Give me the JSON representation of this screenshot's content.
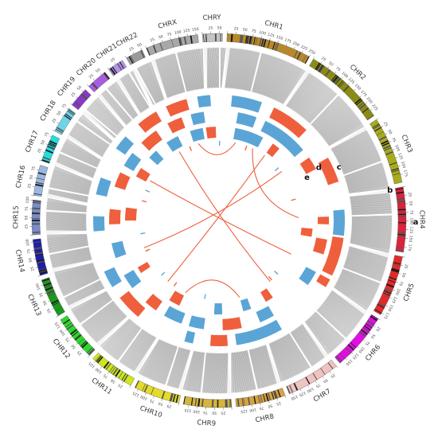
{
  "chromosomes": [
    {
      "label": "CHR1",
      "color": "#b8892a",
      "len": 250
    },
    {
      "label": "CHR2",
      "color": "#8b8a16",
      "len": 243
    },
    {
      "label": "CHR3",
      "color": "#a8ab1b",
      "len": 198
    },
    {
      "label": "CHR4",
      "color": "#d8243d",
      "len": 191
    },
    {
      "label": "CHR5",
      "color": "#e02b2b",
      "len": 181
    },
    {
      "label": "CHR6",
      "color": "#e00ee0",
      "len": 171
    },
    {
      "label": "CHR7",
      "color": "#f0c3c0",
      "len": 159
    },
    {
      "label": "CHR8",
      "color": "#d8a341",
      "len": 146
    },
    {
      "label": "CHR9",
      "color": "#d6b53a",
      "len": 141
    },
    {
      "label": "CHR10",
      "color": "#e5dc2a",
      "len": 136
    },
    {
      "label": "CHR11",
      "color": "#cfe61f",
      "len": 135
    },
    {
      "label": "CHR12",
      "color": "#2fd62f",
      "len": 134
    },
    {
      "label": "CHR13",
      "color": "#1b9a1b",
      "len": 115
    },
    {
      "label": "CHR14",
      "color": "#1e1ea8",
      "len": 107
    },
    {
      "label": "CHR15",
      "color": "#7a8cc8",
      "len": 102
    },
    {
      "label": "CHR16",
      "color": "#9bb8e2",
      "len": 90
    },
    {
      "label": "CHR17",
      "color": "#22dde0",
      "len": 81
    },
    {
      "label": "CHR18",
      "color": "#6fd4e8",
      "len": 78
    },
    {
      "label": "CHR19",
      "color": "#8a38c8",
      "len": 59
    },
    {
      "label": "CHR20",
      "color": "#a85ce0",
      "len": 63
    },
    {
      "label": "CHR21",
      "color": "#b490ee",
      "len": 48
    },
    {
      "label": "CHR22",
      "color": "#9a9a9a",
      "len": 51
    },
    {
      "label": "CHRX",
      "color": "#a8a8a8",
      "len": 155
    },
    {
      "label": "CHRY",
      "color": "#c4c4c4",
      "len": 59
    }
  ],
  "panel_labels": [
    {
      "text": "a",
      "angle": 90.5,
      "r": 247
    },
    {
      "text": "b",
      "angle": 80,
      "r": 218
    },
    {
      "text": "c",
      "angle": 66,
      "r": 165
    },
    {
      "text": "d",
      "angle": 62,
      "r": 142
    },
    {
      "text": "e",
      "angle": 64,
      "r": 123
    }
  ],
  "colors": {
    "copy_gain": "#ef5f3c",
    "copy_loss": "#5aa5d6",
    "links": "#ef5f3c",
    "scatter": "#8a8a8a"
  }
}
